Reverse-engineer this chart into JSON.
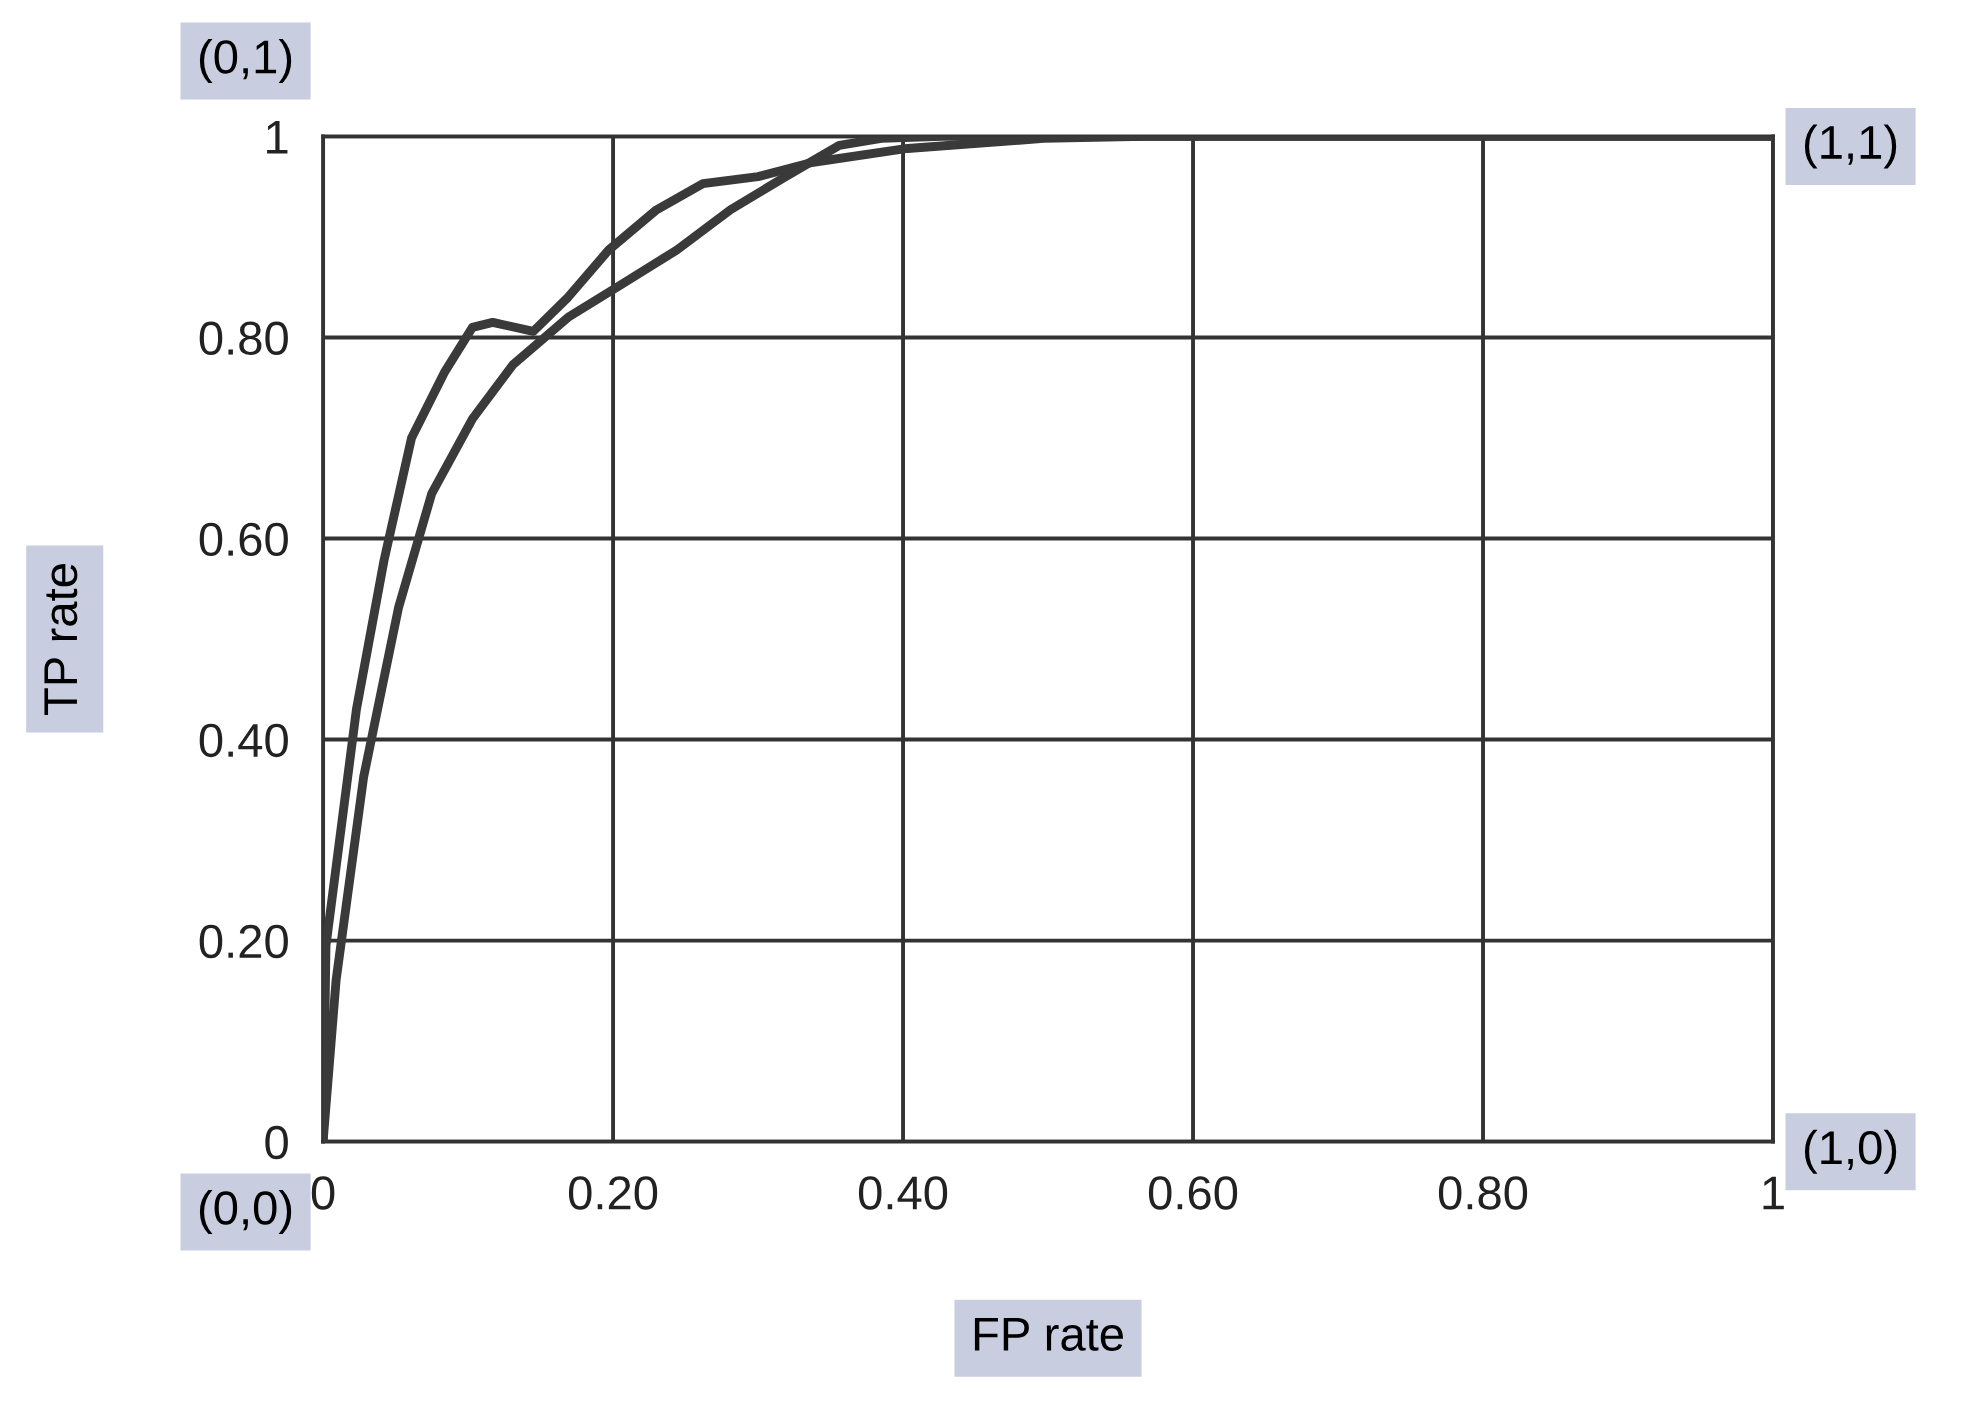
{
  "chart_data": {
    "type": "line",
    "xlabel": "FP rate",
    "ylabel": "TP rate",
    "series": [
      {
        "color": "#3a3a3a",
        "x": [
          0,
          0.002,
          0.023,
          0.042,
          0.061,
          0.084,
          0.103,
          0.117,
          0.145,
          0.169,
          0.197,
          0.23,
          0.262,
          0.3,
          0.337,
          0.403,
          0.497,
          0.567,
          1
        ],
        "values": [
          0,
          0.195,
          0.43,
          0.578,
          0.7,
          0.766,
          0.81,
          0.815,
          0.806,
          0.84,
          0.887,
          0.927,
          0.953,
          0.96,
          0.974,
          0.988,
          0.998,
          1,
          1
        ]
      },
      {
        "color": "#3a3a3a",
        "x": [
          0,
          0.009,
          0.028,
          0.052,
          0.075,
          0.103,
          0.131,
          0.169,
          0.206,
          0.244,
          0.281,
          0.319,
          0.356,
          0.385,
          0.427,
          1
        ],
        "values": [
          0,
          0.161,
          0.363,
          0.531,
          0.645,
          0.719,
          0.773,
          0.82,
          0.853,
          0.887,
          0.927,
          0.96,
          0.991,
          0.998,
          1,
          1
        ]
      }
    ],
    "xlim": [
      0,
      1
    ],
    "ylim": [
      0,
      1
    ],
    "xticks": [
      0,
      {
        "value": 0.2,
        "label": "0.20"
      },
      {
        "value": 0.4,
        "label": "0.40"
      },
      {
        "value": 0.6,
        "label": "0.60"
      },
      {
        "value": 0.8,
        "label": "0.80"
      },
      1
    ],
    "yticks": [
      0,
      {
        "value": 0.2,
        "label": "0.20"
      },
      {
        "value": 0.4,
        "label": "0.40"
      },
      {
        "value": 0.6,
        "label": "0.60"
      },
      {
        "value": 0.8,
        "label": "0.80"
      },
      1
    ],
    "grid": true,
    "marker": "none",
    "line_style": "solid",
    "annotations": [
      "(0,1)",
      "(1,1)",
      "(0,0)",
      "(1,0)"
    ]
  }
}
